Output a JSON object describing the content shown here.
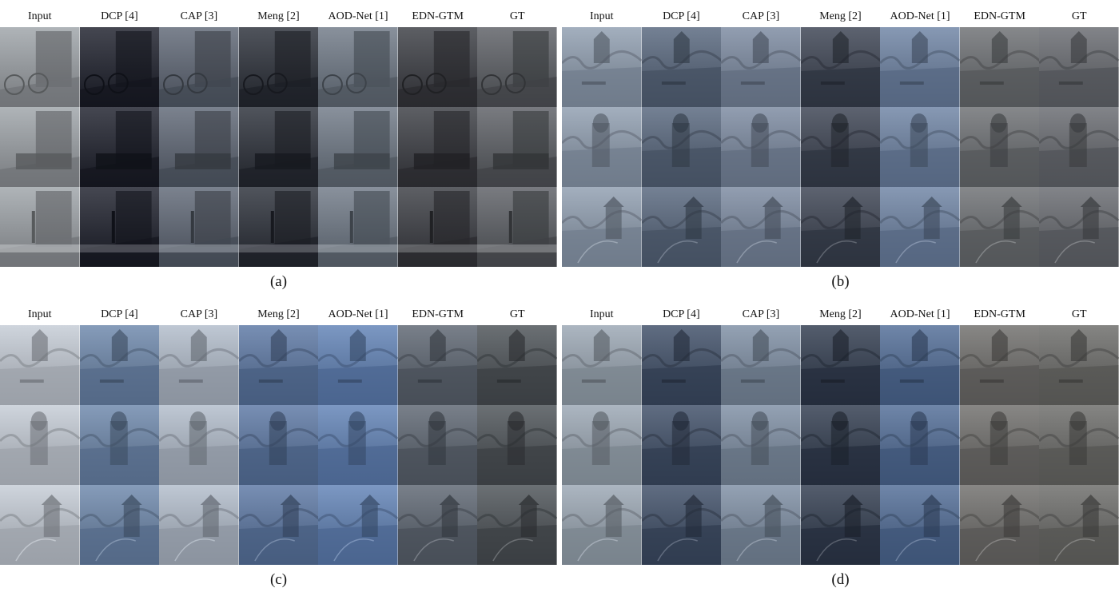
{
  "columns": [
    "Input",
    "DCP [4]",
    "CAP [3]",
    "Meng [2]",
    "AOD-Net [1]",
    "EDN-GTM",
    "GT"
  ],
  "panels": [
    {
      "id": "a",
      "caption": "(a)",
      "scene_type": "indoor",
      "row_scenes": [
        "bicycles-by-door",
        "tv-cabinet-room",
        "vase-on-table"
      ],
      "colors": [
        "#9ea3a8",
        "#1c1f2b",
        "#5e6775",
        "#2a2e38",
        "#6f7986",
        "#3a3c42",
        "#5b5e64"
      ]
    },
    {
      "id": "b",
      "caption": "(b)",
      "scene_type": "outdoor",
      "row_scenes": [
        "church-and-bench",
        "bust-monument",
        "playground-tower"
      ],
      "colors": [
        "#8f9db0",
        "#56657c",
        "#7a89a0",
        "#3a4150",
        "#6d82a4",
        "#6b6e72",
        "#66696f"
      ]
    },
    {
      "id": "c",
      "caption": "(c)",
      "scene_type": "outdoor",
      "row_scenes": [
        "gazebo-garden",
        "evergreen-tree",
        "garden-path"
      ],
      "colors": [
        "#c5ccd6",
        "#6c86ab",
        "#b1bccb",
        "#5a77a3",
        "#5f81b6",
        "#5b6470",
        "#4b5055"
      ]
    },
    {
      "id": "d",
      "caption": "(d)",
      "scene_type": "outdoor",
      "row_scenes": [
        "log-pile",
        "hammock-lawn",
        "hedge-path"
      ],
      "colors": [
        "#9aa6b3",
        "#3d4d66",
        "#7d8da3",
        "#2f3a4d",
        "#4f6b96",
        "#6e6d6a",
        "#6a6a68"
      ]
    }
  ]
}
